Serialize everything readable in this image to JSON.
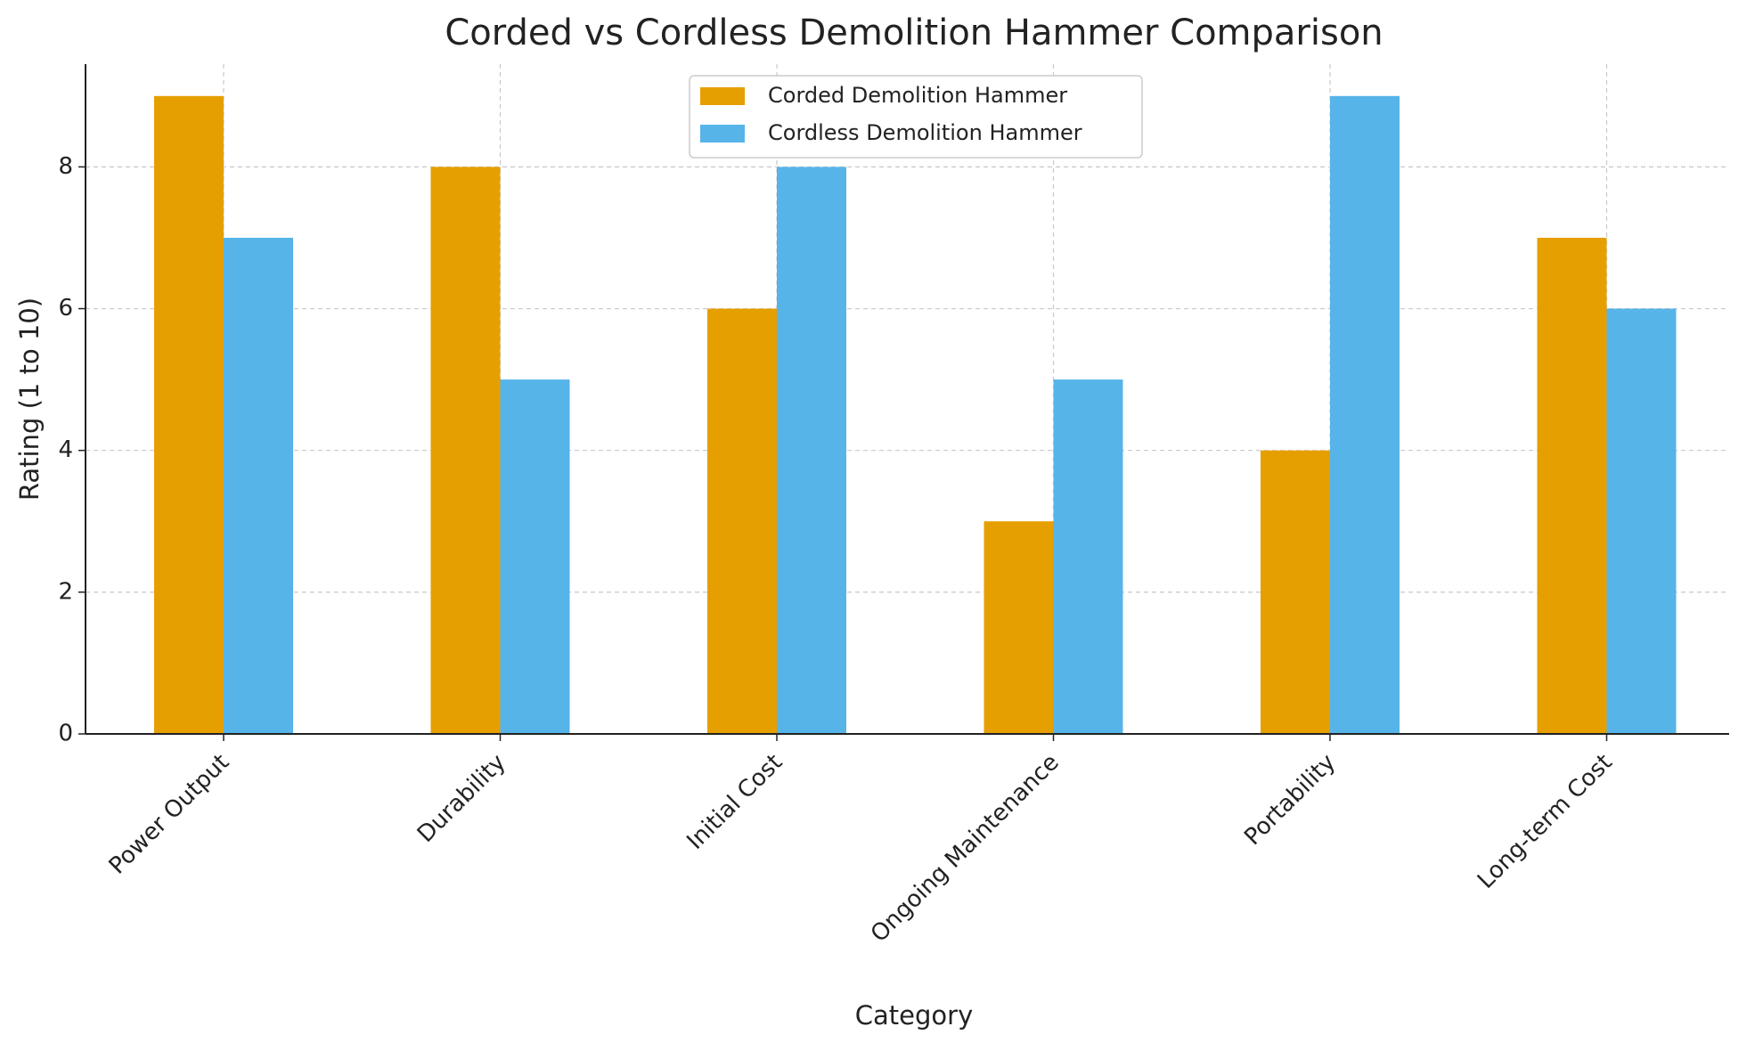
{
  "chart_data": {
    "type": "bar",
    "title": "Corded vs Cordless Demolition Hammer Comparison",
    "x_label": "Category",
    "y_label": "Rating (1 to 10)",
    "categories": [
      "Power Output",
      "Durability",
      "Initial Cost",
      "Ongoing Maintenance",
      "Portability",
      "Long-term Cost"
    ],
    "series": [
      {
        "name": "Corded Demolition Hammer",
        "color": "#E69F00",
        "values": [
          9,
          8,
          6,
          3,
          4,
          7
        ]
      },
      {
        "name": "Cordless Demolition Hammer",
        "color": "#56B4E9",
        "values": [
          7,
          5,
          8,
          5,
          9,
          6
        ]
      }
    ],
    "ylim": [
      0,
      9.45
    ],
    "yticks": [
      0,
      2,
      4,
      6,
      8
    ],
    "grid": true,
    "legend": "upper center"
  }
}
